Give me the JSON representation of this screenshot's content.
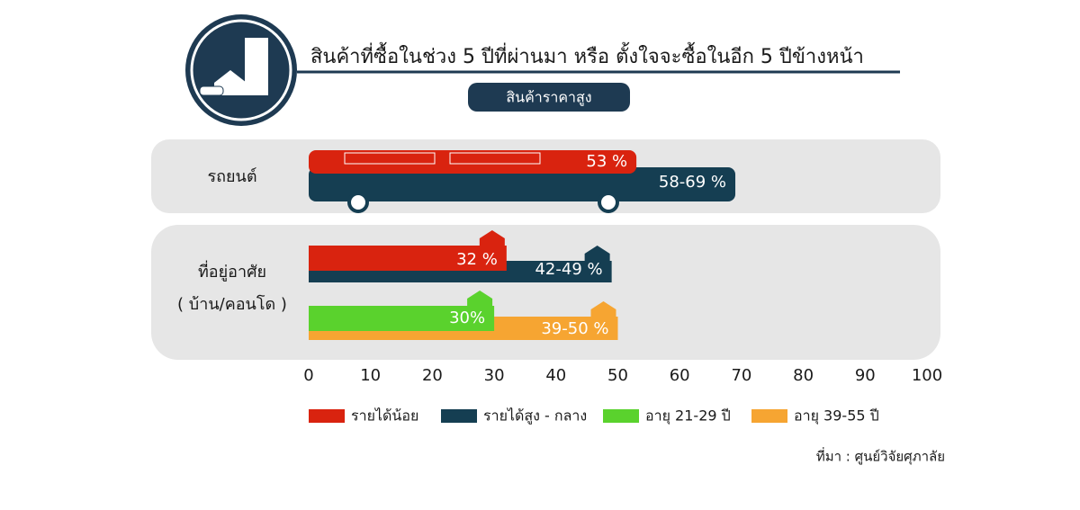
{
  "chart_data": {
    "type": "bar",
    "orientation": "horizontal",
    "title": "สินค้าที่ซื้อในช่วง 5 ปีที่ผ่านมา หรือ ตั้งใจจะซื้อในอีก 5 ปีข้างหน้า",
    "subtitle": "สินค้าราคาสูง",
    "categories": [
      [
        "รถยนต์"
      ],
      [
        "ที่อยู่อาศัย",
        "( บ้าน/คอนโด )"
      ]
    ],
    "series": [
      {
        "name": "รายได้น้อย",
        "color": "#d9230f",
        "values": [
          53,
          32
        ],
        "value_labels": [
          "53 %",
          "32 %"
        ]
      },
      {
        "name": "รายได้สูง - กลาง",
        "color": "#153e52",
        "low": [
          58,
          42
        ],
        "high": [
          69,
          49
        ],
        "value_labels": [
          "58-69 %",
          "42-49 %"
        ]
      },
      {
        "name": "อายุ 21-29 ปี",
        "color": "#5ad22d",
        "values": [
          null,
          30
        ],
        "value_labels": [
          null,
          "30%"
        ]
      },
      {
        "name": "อายุ 39-55 ปี",
        "color": "#f6a532",
        "low": [
          null,
          39
        ],
        "high": [
          null,
          50
        ],
        "value_labels": [
          null,
          "39-50 %"
        ]
      }
    ],
    "xlim": [
      0,
      100
    ],
    "xticks": [
      0,
      10,
      20,
      30,
      40,
      50,
      60,
      70,
      80,
      90,
      100
    ],
    "source": "ที่มา : ศูนย์วิจัยศุภาลัย"
  }
}
